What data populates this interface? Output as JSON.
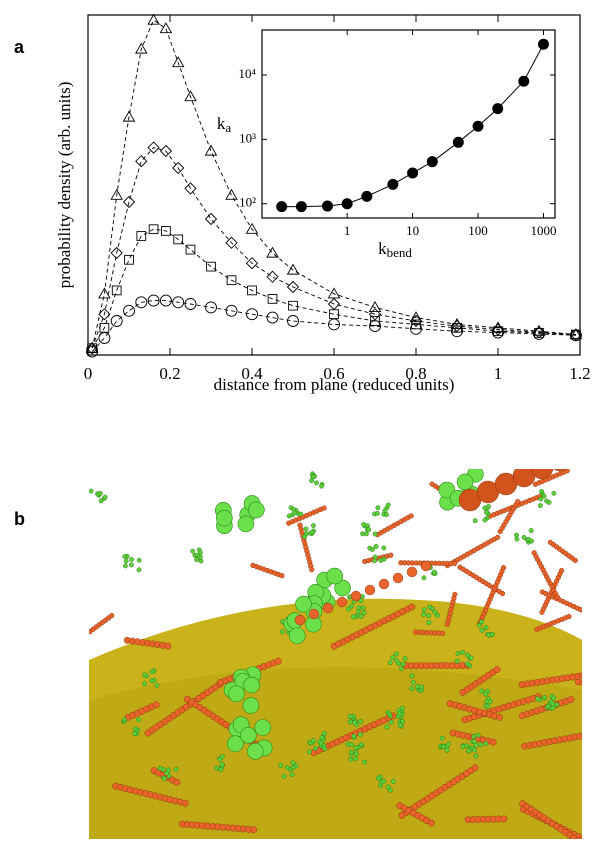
{
  "panel_labels": [
    "a",
    "b"
  ],
  "chart_data": [
    {
      "type": "line",
      "xlabel": "distance from plane (reduced units)",
      "ylabel": "probability density (arb. units)",
      "x": [
        0.01,
        0.04,
        0.07,
        0.1,
        0.13,
        0.16,
        0.19,
        0.22,
        0.25,
        0.3,
        0.35,
        0.4,
        0.45,
        0.5,
        0.6,
        0.7,
        0.8,
        0.9,
        1.0,
        1.1,
        1.19
      ],
      "series": [
        {
          "marker": "triangle",
          "color": "#000000",
          "values": [
            0.02,
            0.18,
            0.47,
            0.7,
            0.9,
            0.985,
            0.96,
            0.86,
            0.76,
            0.6,
            0.47,
            0.37,
            0.3,
            0.25,
            0.18,
            0.14,
            0.11,
            0.09,
            0.08,
            0.07,
            0.06
          ]
        },
        {
          "marker": "diamond",
          "color": "#000000",
          "values": [
            0.02,
            0.12,
            0.3,
            0.45,
            0.57,
            0.61,
            0.6,
            0.55,
            0.49,
            0.4,
            0.33,
            0.27,
            0.23,
            0.2,
            0.15,
            0.12,
            0.1,
            0.085,
            0.075,
            0.067,
            0.06
          ]
        },
        {
          "marker": "square",
          "color": "#000000",
          "values": [
            0.02,
            0.08,
            0.19,
            0.28,
            0.35,
            0.37,
            0.365,
            0.34,
            0.31,
            0.26,
            0.22,
            0.19,
            0.165,
            0.145,
            0.12,
            0.1,
            0.09,
            0.08,
            0.07,
            0.065,
            0.06
          ]
        },
        {
          "marker": "circle",
          "color": "#000000",
          "values": [
            0.01,
            0.05,
            0.1,
            0.13,
            0.155,
            0.16,
            0.16,
            0.155,
            0.15,
            0.14,
            0.13,
            0.12,
            0.11,
            0.1,
            0.09,
            0.085,
            0.077,
            0.07,
            0.066,
            0.062,
            0.058
          ]
        }
      ],
      "xlim": [
        0,
        1.2
      ],
      "xticks": [
        0,
        0.2,
        0.4,
        0.6,
        0.8,
        1,
        1.2
      ],
      "ylim": [
        0,
        1
      ]
    },
    {
      "type": "line",
      "xlabel": [
        "k",
        "bend"
      ],
      "ylabel": [
        "k",
        "a"
      ],
      "log_x": true,
      "log_y": true,
      "x": [
        0.1,
        0.2,
        0.5,
        1,
        2,
        5,
        10,
        20,
        50,
        100,
        200,
        500,
        1000
      ],
      "series": [
        {
          "marker": "filled-circle",
          "color": "#000000",
          "values": [
            90,
            90,
            92,
            100,
            130,
            200,
            300,
            450,
            900,
            1600,
            3000,
            8000,
            30000
          ]
        }
      ],
      "xlim": [
        0.05,
        1500
      ],
      "xticks": [
        1,
        10,
        100,
        1000
      ],
      "ylim": [
        60,
        50000
      ],
      "yticks": [
        {
          "value": 100,
          "label": "10²"
        },
        {
          "value": 1000,
          "label": "10³"
        },
        {
          "value": 10000,
          "label": "10⁴"
        }
      ]
    }
  ]
}
